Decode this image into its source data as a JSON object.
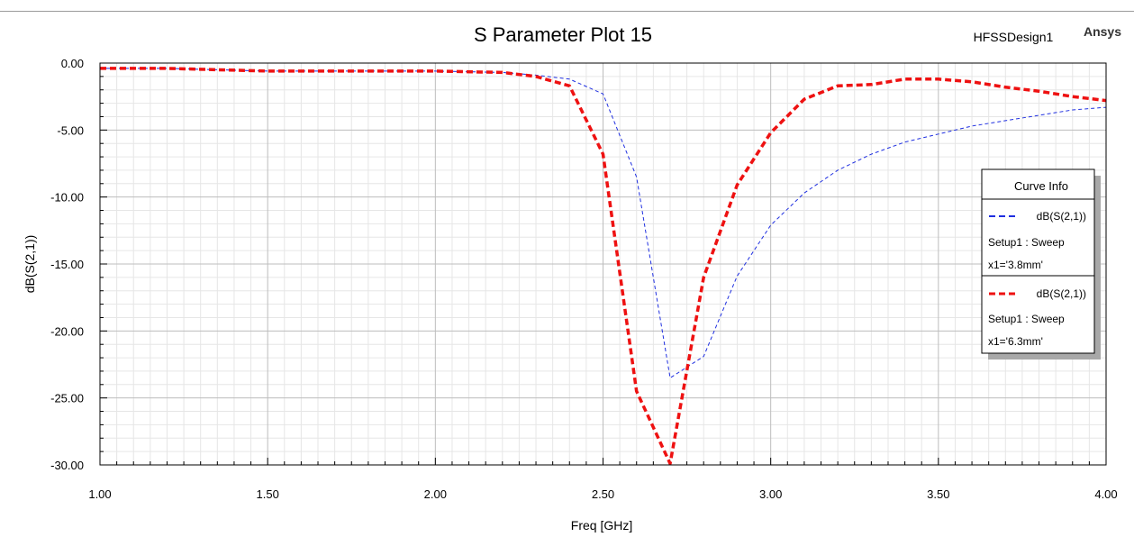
{
  "header": {
    "design_name": "HFSSDesign1",
    "brand": "Ansys"
  },
  "colors": {
    "series_1": "#1f2fe0",
    "series_2": "#ee1111",
    "grid_major": "#bdbdbd",
    "grid_minor": "#e6e6e6"
  },
  "legend": {
    "title": "Curve Info",
    "placement": "right"
  },
  "chart_data": {
    "type": "line",
    "title": "S Parameter Plot 15",
    "xlabel": "Freq [GHz]",
    "ylabel": "dB(S(2,1))",
    "xlim": [
      1.0,
      4.0
    ],
    "ylim": [
      -30.0,
      0.0
    ],
    "x_ticks": [
      "1.00",
      "1.50",
      "2.00",
      "2.50",
      "3.00",
      "3.50",
      "4.00"
    ],
    "y_ticks": [
      "0.00",
      "-5.00",
      "-10.00",
      "-15.00",
      "-20.00",
      "-25.00",
      "-30.00"
    ],
    "grid": true,
    "series": [
      {
        "name": "dB(S(2,1))",
        "setup": "Setup1 : Sweep",
        "param": "x1='3.8mm'",
        "style": "dashed-thin",
        "x": [
          1.0,
          1.2,
          1.5,
          2.0,
          2.2,
          2.3,
          2.4,
          2.5,
          2.6,
          2.7,
          2.8,
          2.9,
          3.0,
          3.1,
          3.2,
          3.3,
          3.4,
          3.5,
          3.6,
          3.7,
          3.8,
          3.9,
          4.0
        ],
        "values": [
          -0.4,
          -0.4,
          -0.6,
          -0.6,
          -0.7,
          -0.9,
          -1.2,
          -2.3,
          -8.5,
          -23.5,
          -21.9,
          -15.9,
          -12.1,
          -9.7,
          -8.0,
          -6.8,
          -5.9,
          -5.3,
          -4.7,
          -4.3,
          -3.9,
          -3.5,
          -3.3
        ]
      },
      {
        "name": "dB(S(2,1))",
        "setup": "Setup1 : Sweep",
        "param": "x1='6.3mm'",
        "style": "dashed-thick",
        "x": [
          1.0,
          1.2,
          1.5,
          2.0,
          2.2,
          2.3,
          2.4,
          2.5,
          2.6,
          2.7,
          2.8,
          2.9,
          3.0,
          3.1,
          3.2,
          3.3,
          3.4,
          3.5,
          3.6,
          3.7,
          3.8,
          3.9,
          4.0
        ],
        "values": [
          -0.4,
          -0.4,
          -0.6,
          -0.6,
          -0.7,
          -1.0,
          -1.7,
          -6.8,
          -24.5,
          -29.9,
          -16.0,
          -9.1,
          -5.2,
          -2.7,
          -1.7,
          -1.6,
          -1.2,
          -1.2,
          -1.4,
          -1.8,
          -2.1,
          -2.5,
          -2.8
        ]
      }
    ]
  }
}
